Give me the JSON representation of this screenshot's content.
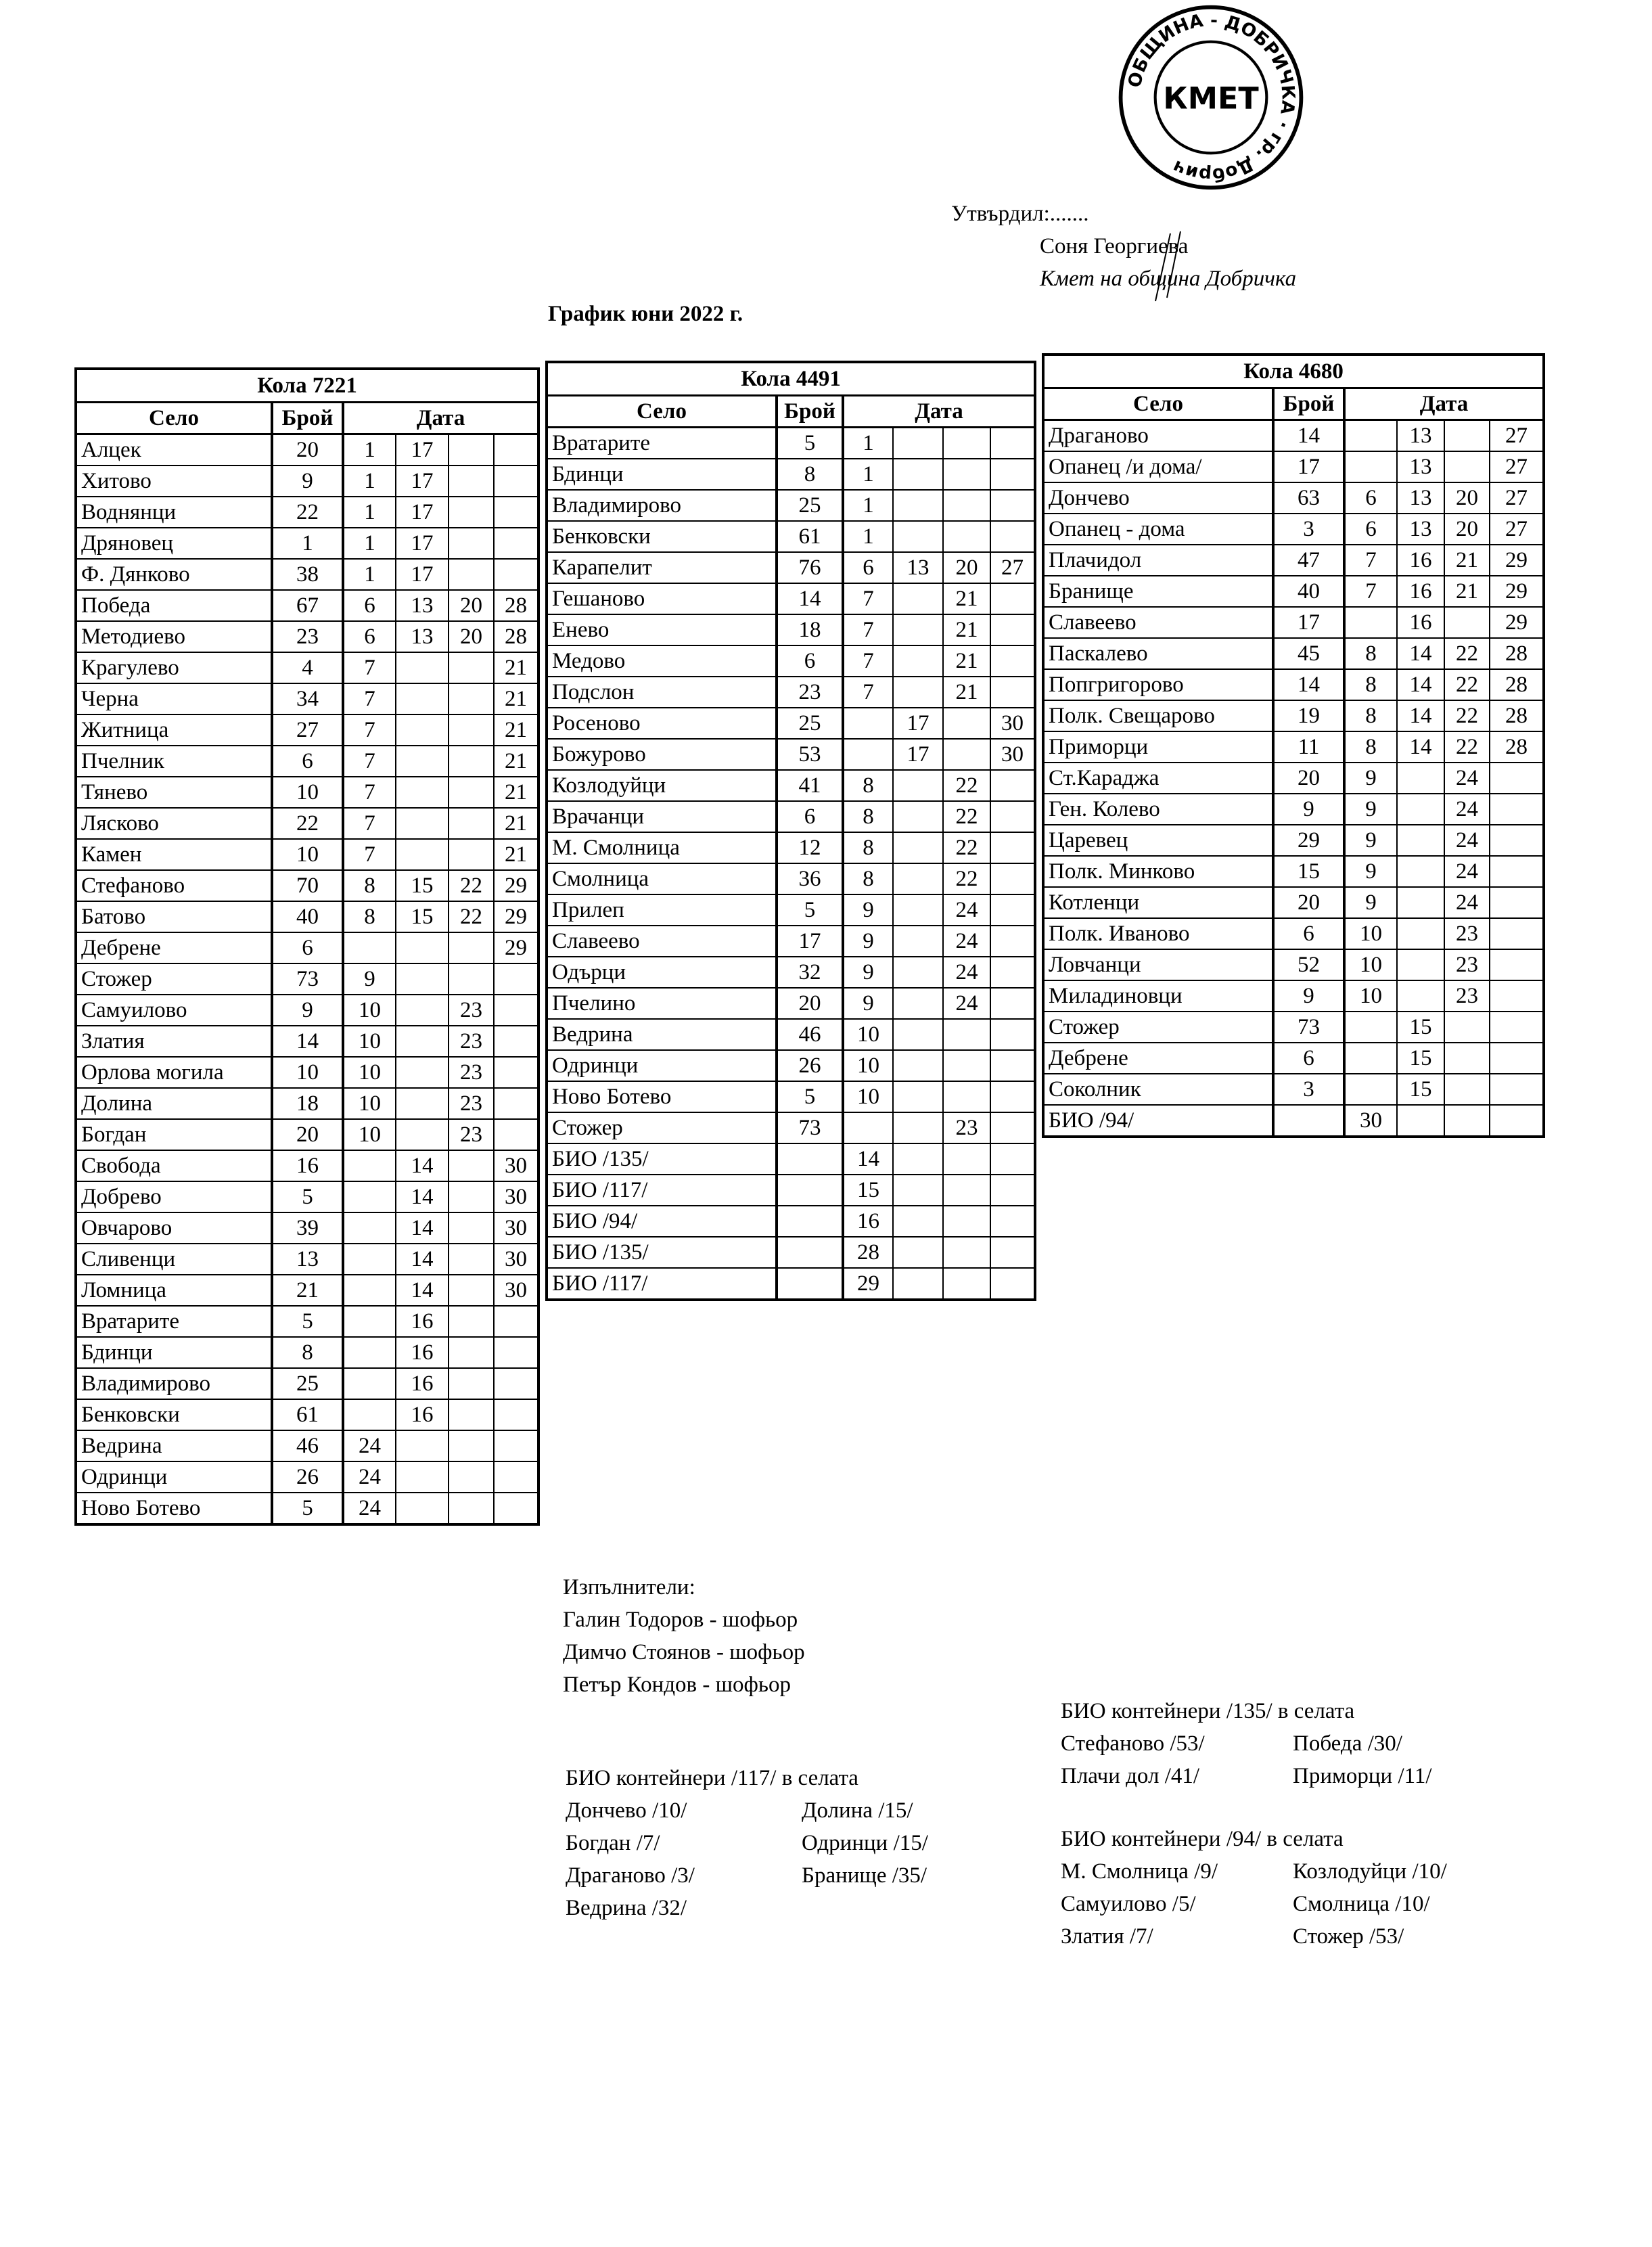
{
  "approval": {
    "approved_by": "Утвърдил:.......",
    "name": "Соня Георгиева",
    "position": "Кмет  на община Добричка"
  },
  "stamp": {
    "text": "ОБЩИНА - ДОБРИЧКА гр. Добрич",
    "center": "КМЕТ"
  },
  "title": "График юни 2022 г.",
  "headers": {
    "village": "Село",
    "count": "Брой",
    "date": "Дата"
  },
  "tables": [
    {
      "car": "Кола 7221",
      "rows": [
        [
          "Алцек",
          "20",
          "1",
          "17",
          "",
          ""
        ],
        [
          "Хитово",
          "9",
          "1",
          "17",
          "",
          ""
        ],
        [
          "Воднянци",
          "22",
          "1",
          "17",
          "",
          ""
        ],
        [
          "Дряновец",
          "1",
          "1",
          "17",
          "",
          ""
        ],
        [
          "Ф. Дянково",
          "38",
          "1",
          "17",
          "",
          ""
        ],
        [
          "Победа",
          "67",
          "6",
          "13",
          "20",
          "28"
        ],
        [
          "Методиево",
          "23",
          "6",
          "13",
          "20",
          "28"
        ],
        [
          "Крагулево",
          "4",
          "7",
          "",
          "",
          "21"
        ],
        [
          "Черна",
          "34",
          "7",
          "",
          "",
          "21"
        ],
        [
          "Житница",
          "27",
          "7",
          "",
          "",
          "21"
        ],
        [
          "Пчелник",
          "6",
          "7",
          "",
          "",
          "21"
        ],
        [
          "Тянево",
          "10",
          "7",
          "",
          "",
          "21"
        ],
        [
          "Лясково",
          "22",
          "7",
          "",
          "",
          "21"
        ],
        [
          "Камен",
          "10",
          "7",
          "",
          "",
          "21"
        ],
        [
          "Стефаново",
          "70",
          "8",
          "15",
          "22",
          "29"
        ],
        [
          "Батово",
          "40",
          "8",
          "15",
          "22",
          "29"
        ],
        [
          "Дебрене",
          "6",
          "",
          "",
          "",
          "29"
        ],
        [
          "Стожер",
          "73",
          "9",
          "",
          "",
          ""
        ],
        [
          "Самуилово",
          "9",
          "10",
          "",
          "23",
          ""
        ],
        [
          "Златия",
          "14",
          "10",
          "",
          "23",
          ""
        ],
        [
          "Орлова могила",
          "10",
          "10",
          "",
          "23",
          ""
        ],
        [
          "Долина",
          "18",
          "10",
          "",
          "23",
          ""
        ],
        [
          "Богдан",
          "20",
          "10",
          "",
          "23",
          ""
        ],
        [
          "Свобода",
          "16",
          "",
          "14",
          "",
          "30"
        ],
        [
          "Добрево",
          "5",
          "",
          "14",
          "",
          "30"
        ],
        [
          "Овчарово",
          "39",
          "",
          "14",
          "",
          "30"
        ],
        [
          "Сливенци",
          "13",
          "",
          "14",
          "",
          "30"
        ],
        [
          "Ломница",
          "21",
          "",
          "14",
          "",
          "30"
        ],
        [
          "Вратарите",
          "5",
          "",
          "16",
          "",
          ""
        ],
        [
          "Бдинци",
          "8",
          "",
          "16",
          "",
          ""
        ],
        [
          "Владимирово",
          "25",
          "",
          "16",
          "",
          ""
        ],
        [
          "Бенковски",
          "61",
          "",
          "16",
          "",
          ""
        ],
        [
          "Ведрина",
          "46",
          "24",
          "",
          "",
          ""
        ],
        [
          "Одринци",
          "26",
          "24",
          "",
          "",
          ""
        ],
        [
          "Ново Ботево",
          "5",
          "24",
          "",
          "",
          ""
        ]
      ]
    },
    {
      "car": "Кола 4491",
      "rows": [
        [
          "Вратарите",
          "5",
          "1",
          "",
          "",
          ""
        ],
        [
          "Бдинци",
          "8",
          "1",
          "",
          "",
          ""
        ],
        [
          "Владимирово",
          "25",
          "1",
          "",
          "",
          ""
        ],
        [
          "Бенковски",
          "61",
          "1",
          "",
          "",
          ""
        ],
        [
          "Карапелит",
          "76",
          "6",
          "13",
          "20",
          "27"
        ],
        [
          "Гешаново",
          "14",
          "7",
          "",
          "21",
          ""
        ],
        [
          "Енево",
          "18",
          "7",
          "",
          "21",
          ""
        ],
        [
          "Медово",
          "6",
          "7",
          "",
          "21",
          ""
        ],
        [
          "Подслон",
          "23",
          "7",
          "",
          "21",
          ""
        ],
        [
          "Росеново",
          "25",
          "",
          "17",
          "",
          "30"
        ],
        [
          "Божурово",
          "53",
          "",
          "17",
          "",
          "30"
        ],
        [
          "Козлодуйци",
          "41",
          "8",
          "",
          "22",
          ""
        ],
        [
          "Врачанци",
          "6",
          "8",
          "",
          "22",
          ""
        ],
        [
          "М. Смолница",
          "12",
          "8",
          "",
          "22",
          ""
        ],
        [
          "Смолница",
          "36",
          "8",
          "",
          "22",
          ""
        ],
        [
          "Прилеп",
          "5",
          "9",
          "",
          "24",
          ""
        ],
        [
          "Славеево",
          "17",
          "9",
          "",
          "24",
          ""
        ],
        [
          "Одърци",
          "32",
          "9",
          "",
          "24",
          ""
        ],
        [
          "Пчелино",
          "20",
          "9",
          "",
          "24",
          ""
        ],
        [
          "Ведрина",
          "46",
          "10",
          "",
          "",
          ""
        ],
        [
          "Одринци",
          "26",
          "10",
          "",
          "",
          ""
        ],
        [
          "Ново Ботево",
          "5",
          "10",
          "",
          "",
          ""
        ],
        [
          "Стожер",
          "73",
          "",
          "",
          "23",
          ""
        ],
        [
          "БИО /135/",
          "",
          "14",
          "",
          "",
          ""
        ],
        [
          "БИО /117/",
          "",
          "15",
          "",
          "",
          ""
        ],
        [
          "БИО /94/",
          "",
          "16",
          "",
          "",
          ""
        ],
        [
          "БИО /135/",
          "",
          "28",
          "",
          "",
          ""
        ],
        [
          "БИО /117/",
          "",
          "29",
          "",
          "",
          ""
        ]
      ]
    },
    {
      "car": "Кола 4680",
      "rows": [
        [
          "Драганово",
          "14",
          "",
          "13",
          "",
          "27"
        ],
        [
          "Опанец /и дома/",
          "17",
          "",
          "13",
          "",
          "27"
        ],
        [
          "Дончево",
          "63",
          "6",
          "13",
          "20",
          "27"
        ],
        [
          "Опанец - дома",
          "3",
          "6",
          "13",
          "20",
          "27"
        ],
        [
          "Плачидол",
          "47",
          "7",
          "16",
          "21",
          "29"
        ],
        [
          "Бранище",
          "40",
          "7",
          "16",
          "21",
          "29"
        ],
        [
          "Славеево",
          "17",
          "",
          "16",
          "",
          "29"
        ],
        [
          "Паскалево",
          "45",
          "8",
          "14",
          "22",
          "28"
        ],
        [
          "Попгригорово",
          "14",
          "8",
          "14",
          "22",
          "28"
        ],
        [
          "Полк. Свещарово",
          "19",
          "8",
          "14",
          "22",
          "28"
        ],
        [
          "Приморци",
          "11",
          "8",
          "14",
          "22",
          "28"
        ],
        [
          "Ст.Караджа",
          "20",
          "9",
          "",
          "24",
          ""
        ],
        [
          "Ген. Колево",
          "9",
          "9",
          "",
          "24",
          ""
        ],
        [
          "Царевец",
          "29",
          "9",
          "",
          "24",
          ""
        ],
        [
          "Полк. Минково",
          "15",
          "9",
          "",
          "24",
          ""
        ],
        [
          "Котленци",
          "20",
          "9",
          "",
          "24",
          ""
        ],
        [
          "Полк. Иваново",
          "6",
          "10",
          "",
          "23",
          ""
        ],
        [
          "Ловчанци",
          "52",
          "10",
          "",
          "23",
          ""
        ],
        [
          "Миладиновци",
          "9",
          "10",
          "",
          "23",
          ""
        ],
        [
          "Стожер",
          "73",
          "",
          "15",
          "",
          ""
        ],
        [
          "Дебрене",
          "6",
          "",
          "15",
          "",
          ""
        ],
        [
          "Соколник",
          "3",
          "",
          "15",
          "",
          ""
        ],
        [
          "БИО /94/",
          "",
          "30",
          "",
          "",
          ""
        ]
      ]
    }
  ],
  "executors": {
    "heading": "Изпълнители:",
    "list": [
      "Галин Тодоров - шофьор",
      "Димчо Стоянов - шофьор",
      "Петър Кондов - шофьор"
    ]
  },
  "bio_117": {
    "heading": "БИО контейнери /117/ в селата",
    "col1": [
      "Дончево /10/",
      "Богдан /7/",
      "Драганово /3/",
      "Ведрина /32/"
    ],
    "col2": [
      "Долина /15/",
      "Одринци /15/",
      "Бранище /35/"
    ]
  },
  "bio_135": {
    "heading": "БИО контейнери /135/ в селата",
    "col1": [
      "Стефаново /53/",
      "Плачи дол /41/"
    ],
    "col2": [
      "Победа /30/",
      "Приморци /11/"
    ]
  },
  "bio_94": {
    "heading": "БИО контейнери /94/ в селата",
    "col1": [
      "М. Смолница /9/",
      "Самуилово /5/",
      "Златия /7/"
    ],
    "col2": [
      "Козлодуйци /10/",
      "Смолница /10/",
      "Стожер /53/"
    ]
  }
}
